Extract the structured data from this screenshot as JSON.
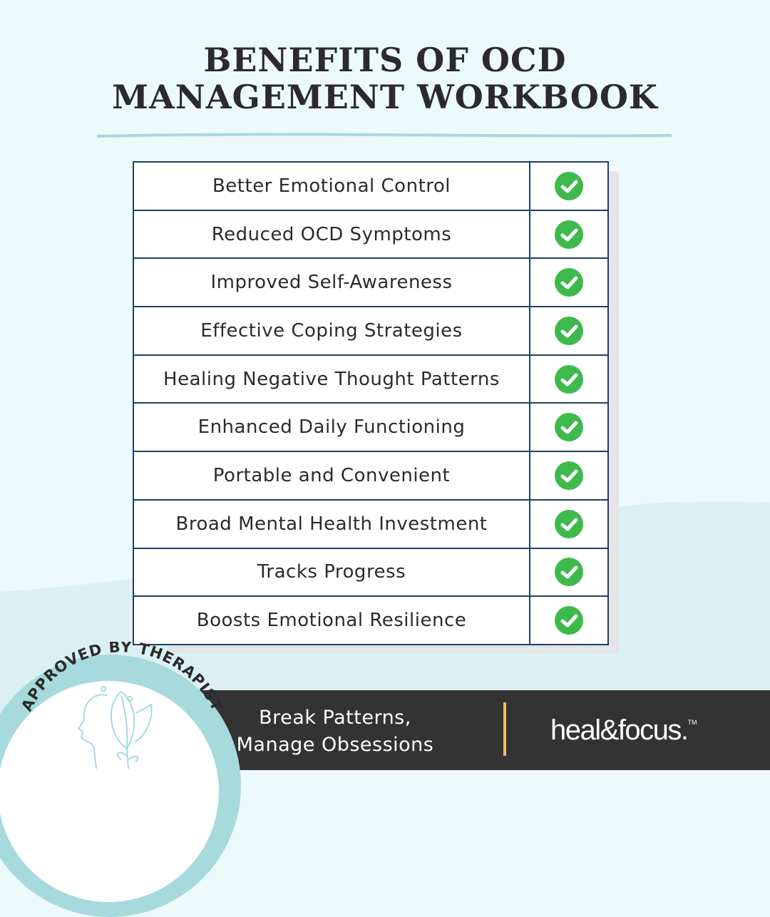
{
  "title": {
    "line1": "BENEFITS OF OCD",
    "line2": "MANAGEMENT WORKBOOK"
  },
  "benefits": [
    {
      "label": "Better Emotional Control",
      "checked": true
    },
    {
      "label": "Reduced OCD Symptoms",
      "checked": true
    },
    {
      "label": "Improved Self-Awareness",
      "checked": true
    },
    {
      "label": "Effective Coping Strategies",
      "checked": true
    },
    {
      "label": "Healing Negative Thought Patterns",
      "checked": true
    },
    {
      "label": "Enhanced Daily Functioning",
      "checked": true
    },
    {
      "label": "Portable and Convenient",
      "checked": true
    },
    {
      "label": "Broad Mental Health Investment",
      "checked": true
    },
    {
      "label": "Tracks Progress",
      "checked": true
    },
    {
      "label": "Boosts Emotional Resilience",
      "checked": true
    }
  ],
  "badge": {
    "text": "APPROVED BY THERAPIST",
    "icon": "head-leaf-icon"
  },
  "footer": {
    "tagline1": "Break Patterns,",
    "tagline2": "Manage Obsessions",
    "logo": "heal&focus.",
    "trademark": "TM"
  },
  "colors": {
    "background": "#ecfafb",
    "table_border": "#1f3f66",
    "check": "#3dba4b",
    "footer": "#333333",
    "divider": "#f2c064",
    "badge_ring": "#a6dadd"
  }
}
